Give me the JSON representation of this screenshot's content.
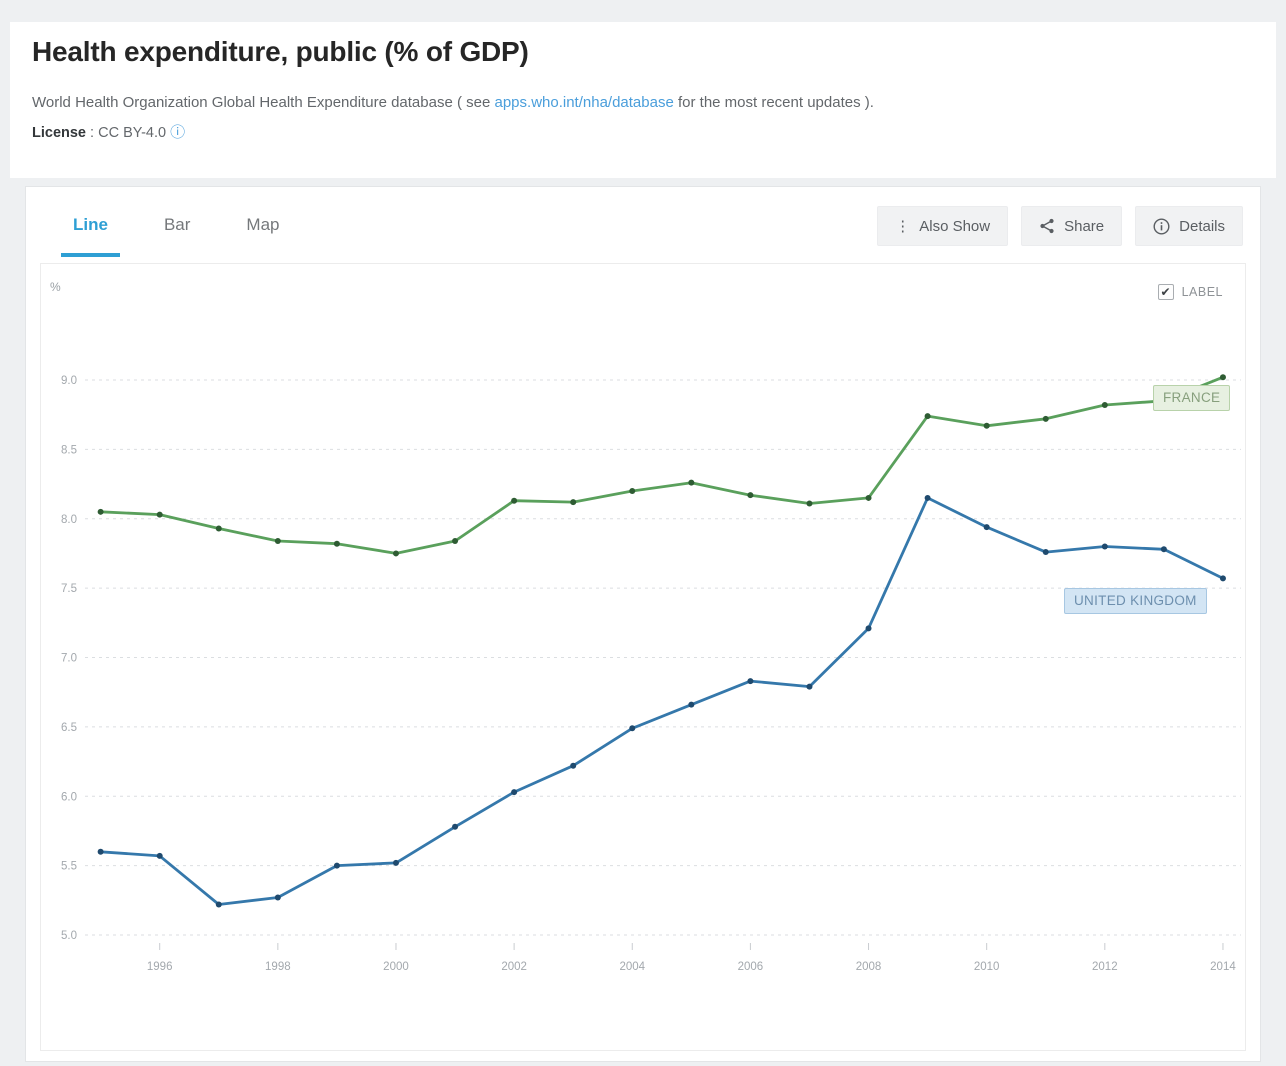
{
  "page": {
    "title": "Health expenditure, public (% of GDP)",
    "source": {
      "prefix": "World Health Organization Global Health Expenditure database ( see ",
      "link": "apps.who.int/nha/database",
      "suffix": " for the most recent updates )."
    },
    "license": {
      "label": "License",
      "sep": " : ",
      "value": "CC BY-4.0",
      "info_glyph": "ⓘ"
    }
  },
  "tabs": [
    {
      "label": "Line",
      "active": true
    },
    {
      "label": "Bar",
      "active": false
    },
    {
      "label": "Map",
      "active": false
    }
  ],
  "toolbar": {
    "also_show": {
      "label": "Also Show",
      "glyph": "⋮"
    },
    "share": {
      "label": "Share"
    },
    "details": {
      "label": "Details"
    }
  },
  "label_toggle": {
    "label": "LABEL",
    "checked": true,
    "check_glyph": "✔"
  },
  "chart_data": {
    "type": "line",
    "title": "Health expenditure, public (% of GDP)",
    "ylabel": "%",
    "xlabel": "",
    "grid": "dashed-horizontal",
    "legend_position": "end-of-line-labels",
    "ylim": [
      5.0,
      9.0
    ],
    "yticks": [
      9.0,
      8.5,
      8.0,
      7.5,
      7.0,
      6.5,
      6.0,
      5.5,
      5.0
    ],
    "xticks": [
      1996,
      1998,
      2000,
      2002,
      2004,
      2006,
      2008,
      2010,
      2012,
      2014
    ],
    "x": [
      1995,
      1996,
      1997,
      1998,
      1999,
      2000,
      2001,
      2002,
      2003,
      2004,
      2005,
      2006,
      2007,
      2008,
      2009,
      2010,
      2011,
      2012,
      2013,
      2014
    ],
    "series": [
      {
        "name": "FRANCE",
        "color": "#5aa05c",
        "dot_color": "#2e5c33",
        "values": [
          8.05,
          8.03,
          7.93,
          7.84,
          7.82,
          7.75,
          7.84,
          8.13,
          8.12,
          8.2,
          8.26,
          8.17,
          8.11,
          8.15,
          8.74,
          8.67,
          8.72,
          8.82,
          8.85,
          9.02
        ]
      },
      {
        "name": "UNITED KINGDOM",
        "color": "#3578ab",
        "dot_color": "#1f4a6e",
        "values": [
          5.6,
          5.57,
          5.22,
          5.27,
          5.5,
          5.52,
          5.78,
          6.03,
          6.22,
          6.49,
          6.66,
          6.83,
          6.79,
          7.21,
          8.15,
          7.94,
          7.76,
          7.8,
          7.78,
          7.57
        ]
      }
    ]
  }
}
